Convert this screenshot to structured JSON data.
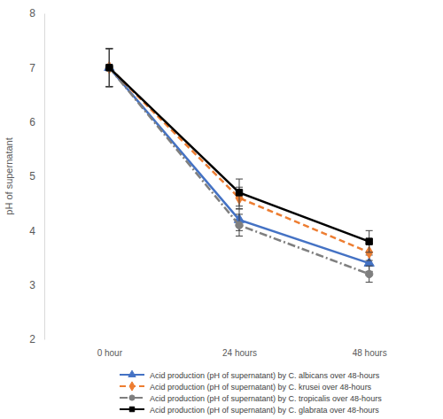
{
  "chart_data": {
    "type": "line",
    "categories": [
      "0 hour",
      "24 hours",
      "48 hours"
    ],
    "ylim": [
      2,
      8
    ],
    "yticks": [
      2,
      3,
      4,
      5,
      6,
      7,
      8
    ],
    "ylabel": "pH of supernatant",
    "legend": "bottom",
    "series": [
      {
        "name": "Acid production (pH of supernatant) by C. albicans over 48-hours",
        "color": "#4472c4",
        "marker": "triangle",
        "line_style": "solid",
        "values": [
          7,
          4.2,
          3.4
        ],
        "errors": [
          0.35,
          0.2,
          0.15
        ]
      },
      {
        "name": "Acid production (pH of supernatant) by C. krusei over 48-hours",
        "color": "#ed7d31",
        "marker": "diamond",
        "line_style": "dashed",
        "values": [
          7,
          4.6,
          3.6
        ],
        "errors": [
          0.35,
          0.2,
          0.15
        ]
      },
      {
        "name": "Acid production (pH of supernatant) by C. tropicalis over 48-hours",
        "color": "#7f7f7f",
        "marker": "circle",
        "line_style": "dashdot",
        "values": [
          7,
          4.1,
          3.2
        ],
        "errors": [
          0.35,
          0.2,
          0.15
        ]
      },
      {
        "name": "Acid production (pH of supernatant) by C. glabrata over 48-hours",
        "color": "#000000",
        "marker": "square",
        "line_style": "solid",
        "values": [
          7,
          4.7,
          3.8
        ],
        "errors": [
          0.35,
          0.25,
          0.2
        ]
      }
    ]
  }
}
